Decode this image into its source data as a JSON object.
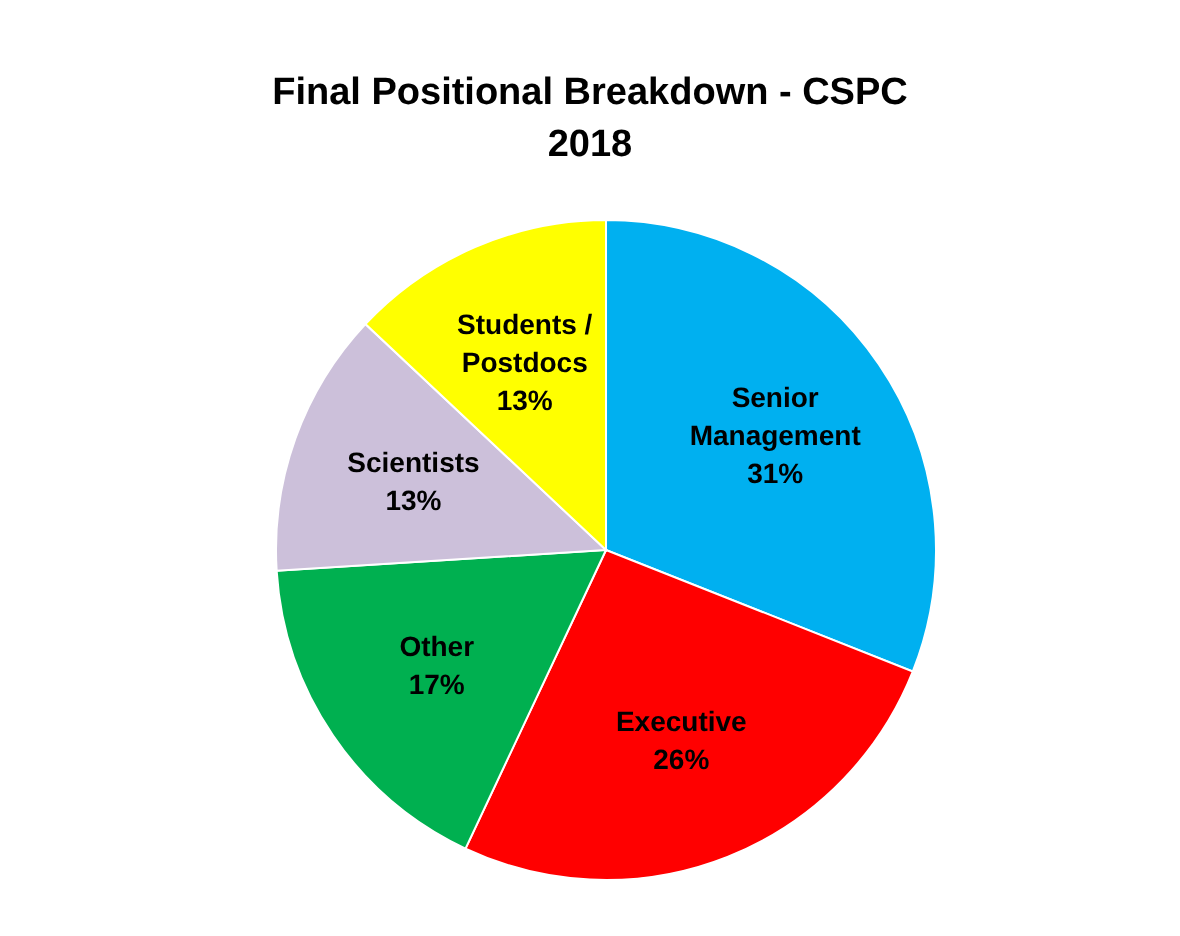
{
  "chart_data": {
    "type": "pie",
    "title": "Final Positional Breakdown - CSPC\n2018",
    "categories": [
      "Senior Management",
      "Executive",
      "Other",
      "Scientists",
      "Students / Postdocs"
    ],
    "values": [
      31,
      26,
      17,
      13,
      13
    ],
    "colors": [
      "#00b0f0",
      "#ff0000",
      "#00b050",
      "#ccc0da",
      "#ffff00"
    ],
    "value_labels": [
      "31%",
      "26%",
      "17%",
      "13%",
      "13%"
    ],
    "legend": false
  }
}
